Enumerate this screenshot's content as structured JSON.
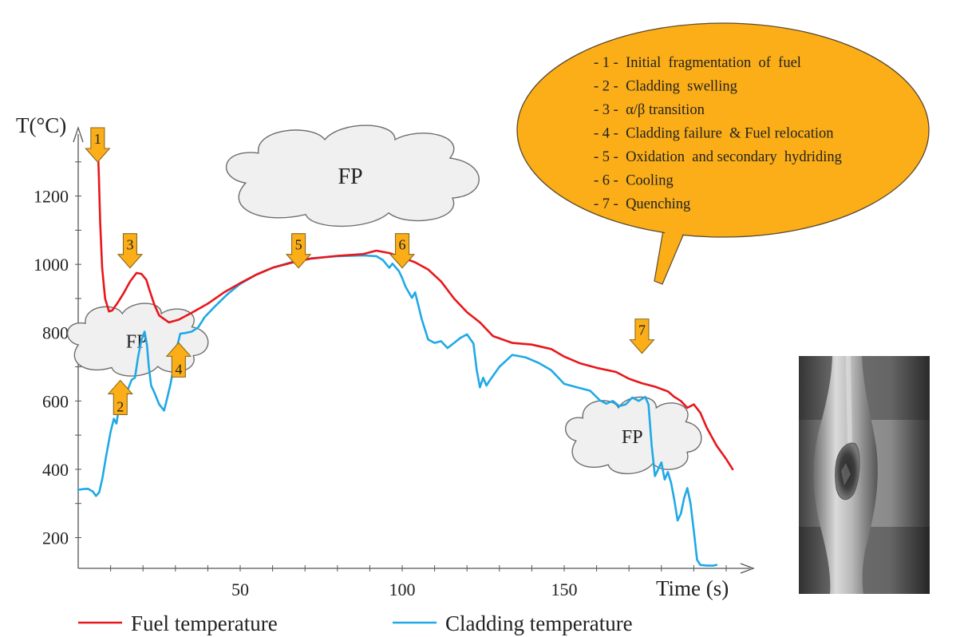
{
  "chart_data": {
    "type": "line",
    "xlabel": "Time (s)",
    "ylabel": "T(°C)",
    "xlim": [
      0,
      200
    ],
    "ylim": [
      110,
      1400
    ],
    "xticks": [
      50,
      100,
      150
    ],
    "yticks": [
      200,
      400,
      600,
      800,
      1000,
      1200
    ],
    "series": [
      {
        "name": "Fuel temperature",
        "color": "#e8161b",
        "points": [
          [
            6,
            1350
          ],
          [
            6.3,
            1280
          ],
          [
            6.8,
            1120
          ],
          [
            7.4,
            990
          ],
          [
            8.3,
            900
          ],
          [
            9.5,
            862
          ],
          [
            10.5,
            865
          ],
          [
            12,
            885
          ],
          [
            14,
            915
          ],
          [
            16,
            950
          ],
          [
            18,
            975
          ],
          [
            19.5,
            972
          ],
          [
            21,
            955
          ],
          [
            22,
            925
          ],
          [
            23.5,
            882
          ],
          [
            25,
            850
          ],
          [
            28,
            830
          ],
          [
            31,
            838
          ],
          [
            35,
            858
          ],
          [
            40,
            885
          ],
          [
            45,
            918
          ],
          [
            50,
            945
          ],
          [
            55,
            970
          ],
          [
            60,
            990
          ],
          [
            66,
            1005
          ],
          [
            72,
            1017
          ],
          [
            80,
            1025
          ],
          [
            88,
            1030
          ],
          [
            92,
            1040
          ],
          [
            96,
            1033
          ],
          [
            100,
            1020
          ],
          [
            104,
            1006
          ],
          [
            108,
            985
          ],
          [
            112,
            950
          ],
          [
            116,
            900
          ],
          [
            120,
            860
          ],
          [
            124,
            830
          ],
          [
            128,
            790
          ],
          [
            134,
            770
          ],
          [
            140,
            765
          ],
          [
            146,
            752
          ],
          [
            150,
            730
          ],
          [
            155,
            710
          ],
          [
            160,
            697
          ],
          [
            166,
            685
          ],
          [
            170,
            665
          ],
          [
            174,
            652
          ],
          [
            178,
            642
          ],
          [
            182,
            628
          ],
          [
            184,
            612
          ],
          [
            186,
            600
          ],
          [
            188,
            580
          ],
          [
            190,
            590
          ],
          [
            192,
            566
          ],
          [
            194,
            522
          ],
          [
            197,
            470
          ],
          [
            200,
            430
          ],
          [
            202,
            400
          ]
        ]
      },
      {
        "name": "Cladding temperature",
        "color": "#1fa9e6",
        "points": [
          [
            0,
            340
          ],
          [
            1.5,
            342
          ],
          [
            3,
            343
          ],
          [
            4.5,
            335
          ],
          [
            5.5,
            322
          ],
          [
            6.5,
            333
          ],
          [
            7.5,
            375
          ],
          [
            8.5,
            432
          ],
          [
            10,
            510
          ],
          [
            11,
            548
          ],
          [
            11.8,
            534
          ],
          [
            12.5,
            575
          ],
          [
            14,
            608
          ],
          [
            15.5,
            638
          ],
          [
            16.5,
            662
          ],
          [
            17.5,
            668
          ],
          [
            18.5,
            730
          ],
          [
            19.5,
            778
          ],
          [
            20.5,
            803
          ],
          [
            21.2,
            765
          ],
          [
            21.8,
            700
          ],
          [
            22.5,
            645
          ],
          [
            23.5,
            625
          ],
          [
            25,
            590
          ],
          [
            26.5,
            572
          ],
          [
            27.5,
            610
          ],
          [
            28.5,
            650
          ],
          [
            29.5,
            700
          ],
          [
            30.5,
            758
          ],
          [
            31.5,
            797
          ],
          [
            33,
            799
          ],
          [
            35,
            803
          ],
          [
            37,
            815
          ],
          [
            39,
            845
          ],
          [
            42,
            875
          ],
          [
            46,
            912
          ],
          [
            50,
            943
          ],
          [
            55,
            970
          ],
          [
            60,
            990
          ],
          [
            66,
            1007
          ],
          [
            72,
            1018
          ],
          [
            80,
            1024
          ],
          [
            88,
            1026
          ],
          [
            92,
            1024
          ],
          [
            94,
            1013
          ],
          [
            96,
            990
          ],
          [
            97,
            1002
          ],
          [
            99,
            980
          ],
          [
            100,
            960
          ],
          [
            101,
            935
          ],
          [
            103,
            902
          ],
          [
            104,
            918
          ],
          [
            106,
            840
          ],
          [
            108,
            780
          ],
          [
            110,
            770
          ],
          [
            112,
            775
          ],
          [
            114,
            755
          ],
          [
            116,
            770
          ],
          [
            118,
            785
          ],
          [
            120,
            795
          ],
          [
            122,
            768
          ],
          [
            123,
            690
          ],
          [
            124,
            640
          ],
          [
            125,
            668
          ],
          [
            126,
            645
          ],
          [
            127,
            660
          ],
          [
            130,
            700
          ],
          [
            134,
            735
          ],
          [
            138,
            728
          ],
          [
            142,
            712
          ],
          [
            146,
            690
          ],
          [
            150,
            650
          ],
          [
            154,
            640
          ],
          [
            158,
            630
          ],
          [
            161,
            602
          ],
          [
            163,
            592
          ],
          [
            165,
            600
          ],
          [
            167,
            585
          ],
          [
            169,
            590
          ],
          [
            171,
            610
          ],
          [
            173,
            600
          ],
          [
            175,
            612
          ],
          [
            176,
            590
          ],
          [
            177,
            470
          ],
          [
            178,
            380
          ],
          [
            179,
            400
          ],
          [
            180,
            420
          ],
          [
            181,
            370
          ],
          [
            182,
            392
          ],
          [
            183,
            360
          ],
          [
            184,
            310
          ],
          [
            185,
            250
          ],
          [
            186,
            270
          ],
          [
            187,
            315
          ],
          [
            188,
            345
          ],
          [
            189,
            300
          ],
          [
            190,
            220
          ],
          [
            191,
            135
          ],
          [
            192,
            120
          ],
          [
            194,
            118
          ],
          [
            196,
            118
          ],
          [
            197,
            120
          ]
        ]
      }
    ],
    "markers": [
      {
        "label": "1",
        "x": 6,
        "y": 1400,
        "direction": "down"
      },
      {
        "label": "2",
        "x": 13,
        "y": 560,
        "direction": "up"
      },
      {
        "label": "3",
        "x": 16,
        "y": 1090,
        "direction": "down"
      },
      {
        "label": "4",
        "x": 31,
        "y": 670,
        "direction": "up"
      },
      {
        "label": "5",
        "x": 68,
        "y": 1090,
        "direction": "down"
      },
      {
        "label": "6",
        "x": 100,
        "y": 1090,
        "direction": "down"
      },
      {
        "label": "7",
        "x": 174,
        "y": 840,
        "direction": "down"
      }
    ],
    "clouds": [
      {
        "label": "FP",
        "x": 18,
        "y": 780
      },
      {
        "label": "FP",
        "x": 84,
        "y": 1260
      },
      {
        "label": "FP",
        "x": 171,
        "y": 500
      }
    ],
    "annotation_box": {
      "color": "#fbae17",
      "items": [
        "- 1 -  Initial  fragmentation  of  fuel",
        "- 2 -  Cladding  swelling",
        "- 3 -  α/β transition",
        "- 4 -  Cladding failure  & Fuel relocation",
        "- 5 -  Oxidation  and secondary  hydriding",
        "- 6 -  Cooling",
        "- 7 -  Quenching"
      ]
    },
    "legend_position": "bottom"
  }
}
